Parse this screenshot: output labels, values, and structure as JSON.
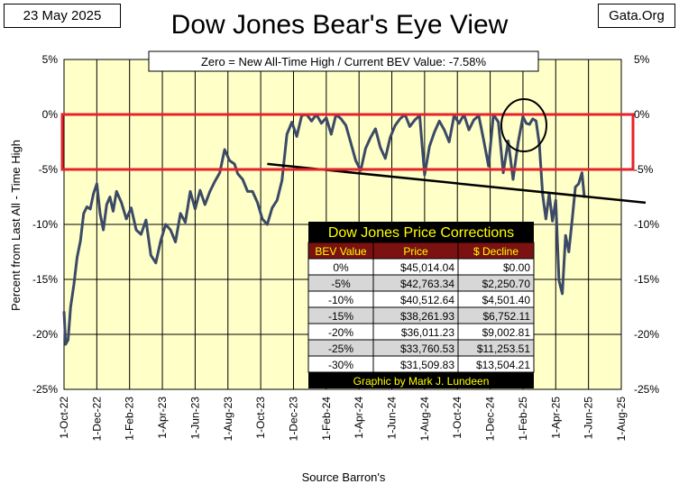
{
  "header": {
    "date": "23 May 2025",
    "site": "Gata.Org",
    "title": "Dow Jones Bear's Eye View"
  },
  "note": "Zero = New All-Time High / Current BEV Value:  -7.58%",
  "colors": {
    "plot_bg": "#ffffc8",
    "line": "#3b4a66",
    "highlight_box": "#e8222a",
    "table_title_bg": "#000000",
    "table_title_fg": "#ffff00",
    "table_header_bg": "#7b1111",
    "table_header_fg": "#ffff00",
    "table_row_alt": "#d7d7d7"
  },
  "chart_data": {
    "type": "line",
    "title": "Dow Jones Bear's Eye View",
    "xlabel": "Source Barron's",
    "ylabel": "Percent from Last All - Time  High",
    "ylim": [
      -25,
      5
    ],
    "y_ticks": [
      "5%",
      "0%",
      "-5%",
      "-10%",
      "-15%",
      "-20%",
      "-25%"
    ],
    "y_tick_values": [
      5,
      0,
      -5,
      -10,
      -15,
      -20,
      -25
    ],
    "x_ticks": [
      "1-Oct-22",
      "1-Dec-22",
      "1-Feb-23",
      "1-Apr-23",
      "1-Jun-23",
      "1-Aug-23",
      "1-Oct-23",
      "1-Dec-23",
      "1-Feb-24",
      "1-Apr-24",
      "1-Jun-24",
      "1-Aug-24",
      "1-Oct-24",
      "1-Dec-24",
      "1-Feb-25",
      "1-Apr-25",
      "1-Jun-25",
      "1-Aug-25"
    ],
    "x_range_months": [
      0,
      34
    ],
    "current_value": -7.58,
    "series": [
      {
        "name": "Dow Jones BEV",
        "x_months": [
          0.0,
          0.1,
          0.25,
          0.4,
          0.6,
          0.8,
          1.0,
          1.2,
          1.4,
          1.6,
          1.8,
          2.0,
          2.2,
          2.4,
          2.6,
          2.8,
          3.0,
          3.2,
          3.5,
          3.8,
          4.1,
          4.4,
          4.7,
          5.0,
          5.3,
          5.6,
          5.9,
          6.2,
          6.5,
          6.8,
          7.1,
          7.4,
          7.7,
          8.0,
          8.3,
          8.6,
          8.9,
          9.2,
          9.5,
          9.8,
          10.1,
          10.4,
          10.6,
          10.9,
          11.2,
          11.5,
          11.8,
          12.1,
          12.4,
          12.7,
          13.0,
          13.3,
          13.6,
          13.9,
          14.2,
          14.5,
          14.8,
          15.1,
          15.4,
          15.7,
          16.0,
          16.3,
          16.6,
          16.9,
          17.2,
          17.5,
          17.8,
          18.1,
          18.4,
          18.7,
          19.0,
          19.3,
          19.6,
          19.9,
          20.2,
          20.5,
          20.8,
          21.1,
          21.4,
          21.7,
          22.0,
          22.3,
          22.6,
          22.9,
          23.2,
          23.5,
          23.8,
          24.1,
          24.4,
          24.7,
          25.0,
          25.3,
          25.6,
          25.9,
          26.2,
          26.5,
          26.8,
          27.1,
          27.4,
          27.7,
          28.0,
          28.2,
          28.4,
          28.6,
          28.8,
          29.0,
          29.2,
          29.4,
          29.6,
          29.8,
          30.0,
          30.2,
          30.4,
          30.6,
          30.8,
          31.0,
          31.2,
          31.4,
          31.6,
          31.75
        ],
        "values": [
          -17.9,
          -20.9,
          -20.5,
          -17.5,
          -15.5,
          -13.0,
          -11.5,
          -9.0,
          -8.4,
          -8.6,
          -7.2,
          -6.3,
          -9.0,
          -10.5,
          -8.2,
          -7.5,
          -8.8,
          -7.0,
          -8.0,
          -9.5,
          -8.5,
          -10.5,
          -10.9,
          -9.6,
          -12.8,
          -13.5,
          -11.5,
          -10.0,
          -10.5,
          -11.6,
          -9.0,
          -9.8,
          -7.0,
          -8.6,
          -6.9,
          -8.2,
          -7.0,
          -6.1,
          -5.3,
          -3.2,
          -4.2,
          -4.5,
          -5.4,
          -5.9,
          -7.0,
          -7.0,
          -8.0,
          -9.5,
          -10.0,
          -8.5,
          -7.8,
          -6.0,
          -1.8,
          -0.7,
          -2.0,
          -0.1,
          0.0,
          -0.6,
          0.0,
          -0.8,
          -0.3,
          -1.8,
          0.0,
          -0.4,
          -1.0,
          -2.6,
          -4.2,
          -5.1,
          -3.1,
          -2.1,
          -1.3,
          -3.0,
          -4.0,
          -2.1,
          -1.0,
          -0.4,
          0.0,
          -1.1,
          -0.5,
          -0.1,
          -5.5,
          -2.9,
          -1.6,
          -0.6,
          -1.4,
          -2.5,
          -0.1,
          -0.8,
          0.0,
          -1.4,
          -0.5,
          -0.1,
          -2.3,
          -4.7,
          0.0,
          -0.7,
          -5.3,
          -2.4,
          -5.9,
          -2.6,
          -0.2,
          -0.8,
          -0.9,
          -0.4,
          -0.6,
          -2.7,
          -7.3,
          -9.5,
          -7.2,
          -9.7,
          -7.8,
          -15.1,
          -16.3,
          -11.0,
          -12.5,
          -9.6,
          -6.6,
          -6.3,
          -5.3,
          -7.58
        ]
      },
      {
        "name": "Trend line",
        "x_months": [
          12.4,
          34.0
        ],
        "values": [
          -4.5,
          -7.9
        ]
      }
    ],
    "highlight_range": [
      -5,
      0
    ]
  },
  "table": {
    "title": "Dow Jones Price Corrections",
    "headers": [
      "BEV Value",
      "Price",
      "$ Decline"
    ],
    "rows": [
      [
        "0%",
        "$45,014.04",
        "$0.00"
      ],
      [
        "-5%",
        "$42,763.34",
        "$2,250.70"
      ],
      [
        "-10%",
        "$40,512.64",
        "$4,501.40"
      ],
      [
        "-15%",
        "$38,261.93",
        "$6,752.11"
      ],
      [
        "-20%",
        "$36,011.23",
        "$9,002.81"
      ],
      [
        "-25%",
        "$33,760.53",
        "$11,253.51"
      ],
      [
        "-30%",
        "$31,509.83",
        "$13,504.21"
      ]
    ],
    "footer": "Graphic by Mark J. Lundeen"
  }
}
